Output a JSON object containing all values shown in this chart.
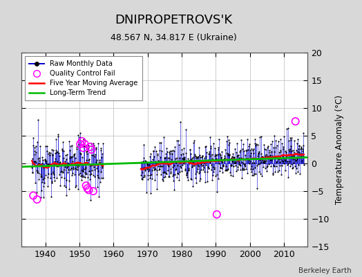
{
  "title": "DNIPROPETROVS'K",
  "subtitle": "48.567 N, 34.817 E (Ukraine)",
  "ylabel": "Temperature Anomaly (°C)",
  "credit": "Berkeley Earth",
  "xlim": [
    1933,
    2017
  ],
  "ylim": [
    -15,
    20
  ],
  "yticks": [
    -15,
    -10,
    -5,
    0,
    5,
    10,
    15,
    20
  ],
  "xticks": [
    1940,
    1950,
    1960,
    1970,
    1980,
    1990,
    2000,
    2010
  ],
  "raw_color": "#0000cc",
  "dot_color": "#000000",
  "qc_color": "#ff00ff",
  "ma_color": "#ff0000",
  "trend_color": "#00bb00",
  "bg_color": "#d8d8d8",
  "plot_bg": "#ffffff",
  "grid_color": "#bbbbbb",
  "seg1_start": 1936,
  "seg1_end": 1957,
  "seg2_start": 1968,
  "seg2_end": 2016,
  "trend_x": [
    1933,
    2017
  ],
  "trend_y": [
    -0.6,
    1.1
  ],
  "qc_times": [
    1936.4,
    1937.5,
    1950.2,
    1950.7,
    1951.1,
    1951.5,
    1951.9,
    1952.3,
    1952.7,
    1953.1,
    1953.5,
    1954.0,
    1990.3,
    2013.4
  ],
  "qc_vals": [
    -5.8,
    -6.5,
    3.5,
    4.0,
    2.8,
    3.5,
    -4.0,
    -4.5,
    -4.8,
    3.0,
    2.5,
    -5.0,
    -9.2,
    7.6
  ]
}
